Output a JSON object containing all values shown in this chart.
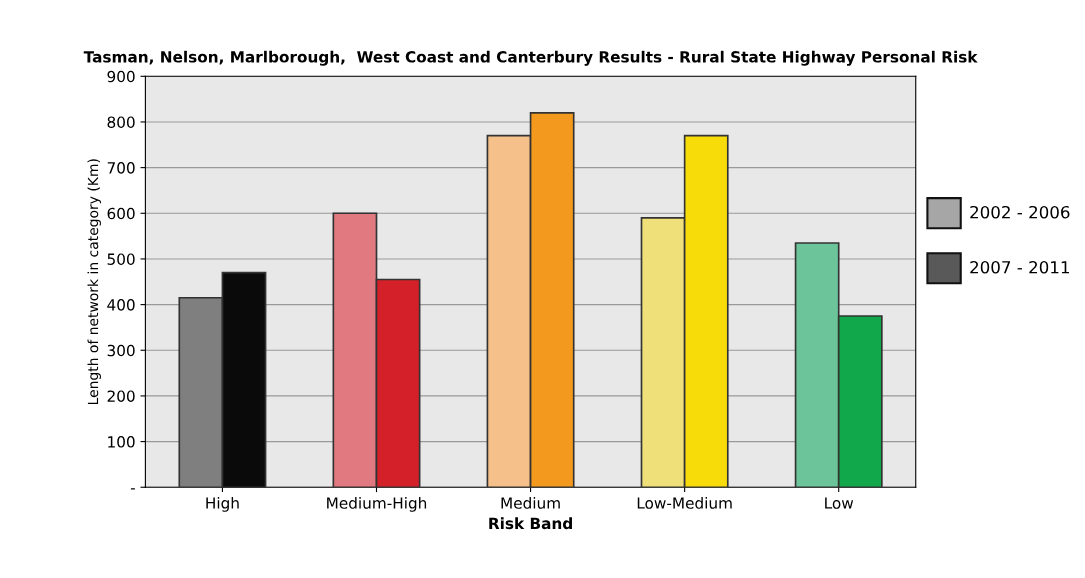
{
  "chart_data": {
    "type": "bar",
    "title": "Tasman, Nelson, Marlborough,  West Coast and Canterbury Results - Rural State Highway Personal Risk",
    "xlabel": "Risk Band",
    "ylabel": "Length of network in category (Km)",
    "categories": [
      "High",
      "Medium-High",
      "Medium",
      "Low-Medium",
      "Low"
    ],
    "series": [
      {
        "name": "2002 - 2006",
        "color": "#a6a6a6",
        "colors": [
          "#7f7f7f",
          "#e07a80",
          "#f5c08a",
          "#f0e07a",
          "#6cc49a"
        ],
        "values": [
          415,
          600,
          770,
          590,
          535
        ]
      },
      {
        "name": "2007 - 2011",
        "color": "#595959",
        "colors": [
          "#0a0a0a",
          "#d42028",
          "#f39a1e",
          "#f8dc0a",
          "#10a84a"
        ],
        "values": [
          470,
          455,
          820,
          770,
          375
        ]
      }
    ],
    "ylim": [
      0,
      900
    ],
    "yticks": [
      {
        "value": 0,
        "label": "-"
      },
      100,
      200,
      300,
      400,
      500,
      600,
      700,
      800,
      900
    ],
    "grid": "y",
    "legend": "right"
  }
}
